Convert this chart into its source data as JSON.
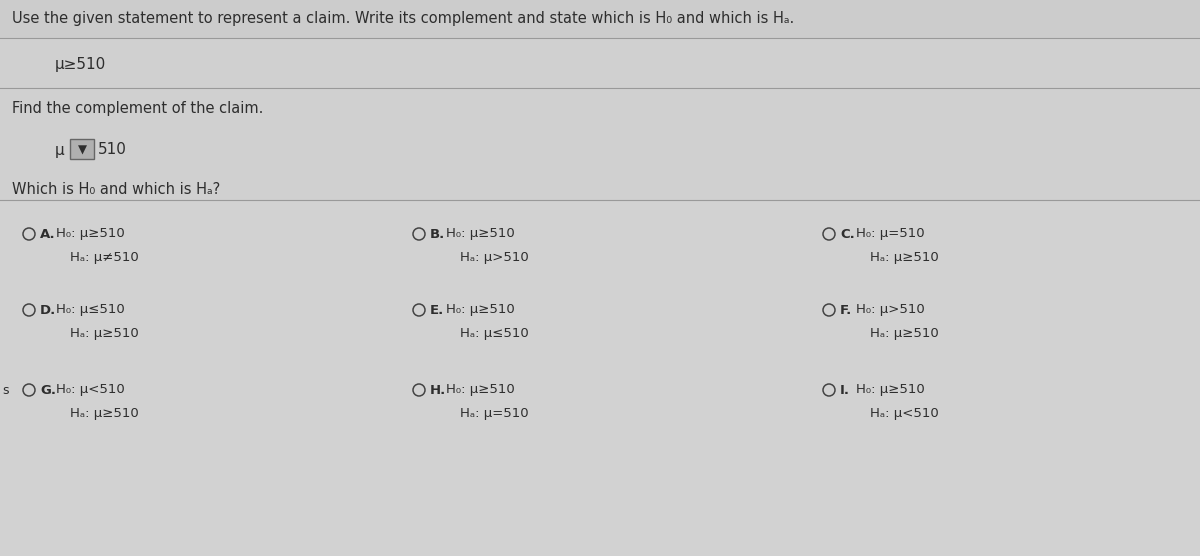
{
  "bg_color": "#d2d2d2",
  "header_text": "Use the given statement to represent a claim. Write its complement and state which is H₀ and which is Hₐ.",
  "claim": "μ≥510",
  "find_complement_label": "Find the complement of the claim.",
  "dropdown_symbol": "▼",
  "which_label": "Which is H₀ and which is Hₐ?",
  "options": [
    {
      "letter": "A",
      "h0": "H₀: μ≥510",
      "ha": "Hₐ: μ≠510"
    },
    {
      "letter": "D",
      "h0": "H₀: μ≤510",
      "ha": "Hₐ: μ≥510"
    },
    {
      "letter": "G",
      "h0": "H₀: μ<510",
      "ha": "Hₐ: μ≥510"
    },
    {
      "letter": "B",
      "h0": "H₀: μ≥510",
      "ha": "Hₐ: μ>510"
    },
    {
      "letter": "E",
      "h0": "H₀: μ≥510",
      "ha": "Hₐ: μ≤510"
    },
    {
      "letter": "H",
      "h0": "H₀: μ≥510",
      "ha": "Hₐ: μ=510"
    },
    {
      "letter": "C",
      "h0": "H₀: μ=510",
      "ha": "Hₐ: μ≥510"
    },
    {
      "letter": "F",
      "h0": "H₀: μ>510",
      "ha": "Hₐ: μ≥510"
    },
    {
      "letter": "I",
      "h0": "H₀: μ≥510",
      "ha": "Hₐ: μ<510"
    }
  ],
  "left_edge_label": "s",
  "text_color": "#2e2e2e",
  "line_color": "#aaaaaa",
  "radio_color": "#444444",
  "font_size_header": 10.5,
  "font_size_body": 10.5,
  "font_size_option": 9.5,
  "font_size_claim": 11
}
